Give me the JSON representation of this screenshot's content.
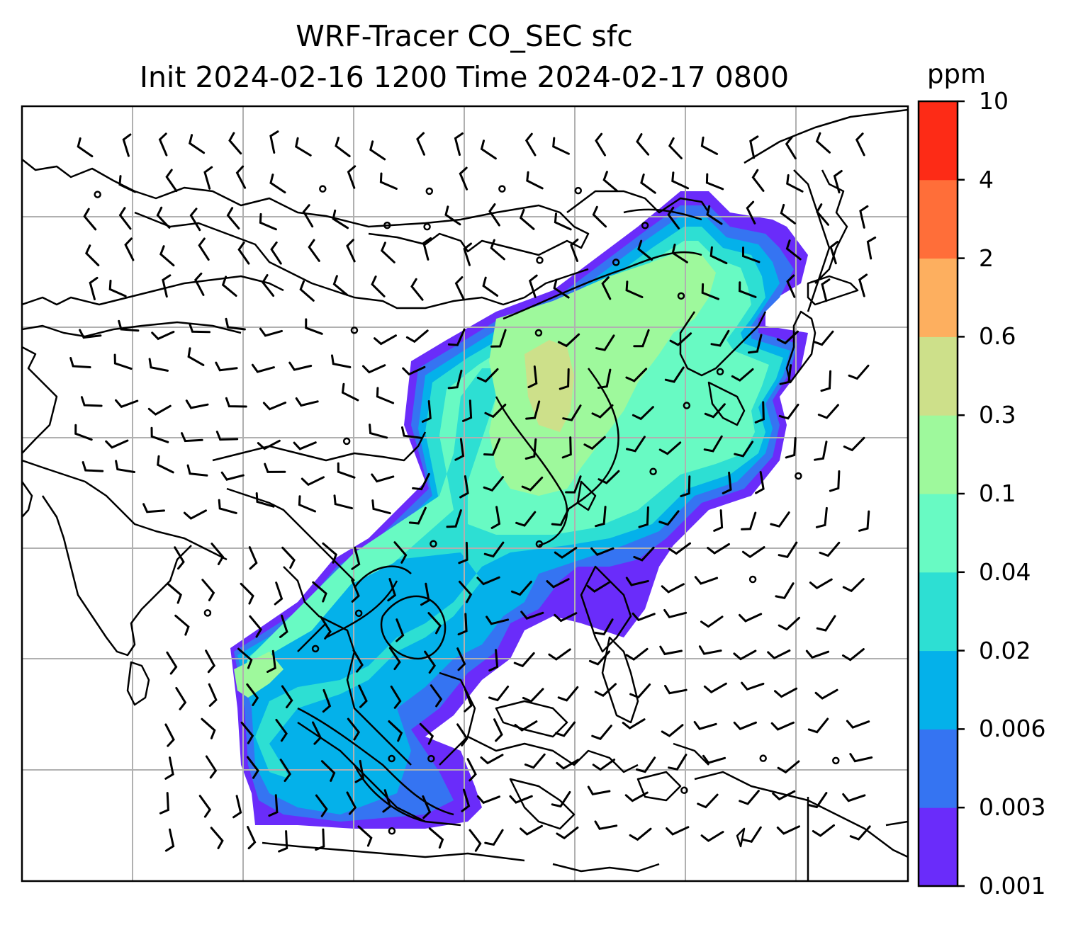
{
  "title": {
    "line1": "WRF-Tracer CO_SEC sfc",
    "line2": "Init 2024-02-16 1200 Time 2024-02-17 0800"
  },
  "colorbar": {
    "unit": "ppm",
    "levels": [
      "0.001",
      "0.003",
      "0.006",
      "0.02",
      "0.04",
      "0.1",
      "0.3",
      "0.6",
      "2",
      "4",
      "10"
    ],
    "colors": [
      "#6a2cfa",
      "#3574f2",
      "#04b1ea",
      "#2ddfd3",
      "#68fac3",
      "#9ef99c",
      "#cde08a",
      "#fdaf5f",
      "#ff6e39",
      "#fd2b16"
    ]
  },
  "map": {
    "layers": [
      "coastlines",
      "gridlines",
      "wind-barbs",
      "tracer-fill",
      "tracer-contours"
    ],
    "coastline_color": "#000000",
    "grid_color": "#b0b0b0",
    "grid_columns": 7,
    "grid_rows": 6
  }
}
